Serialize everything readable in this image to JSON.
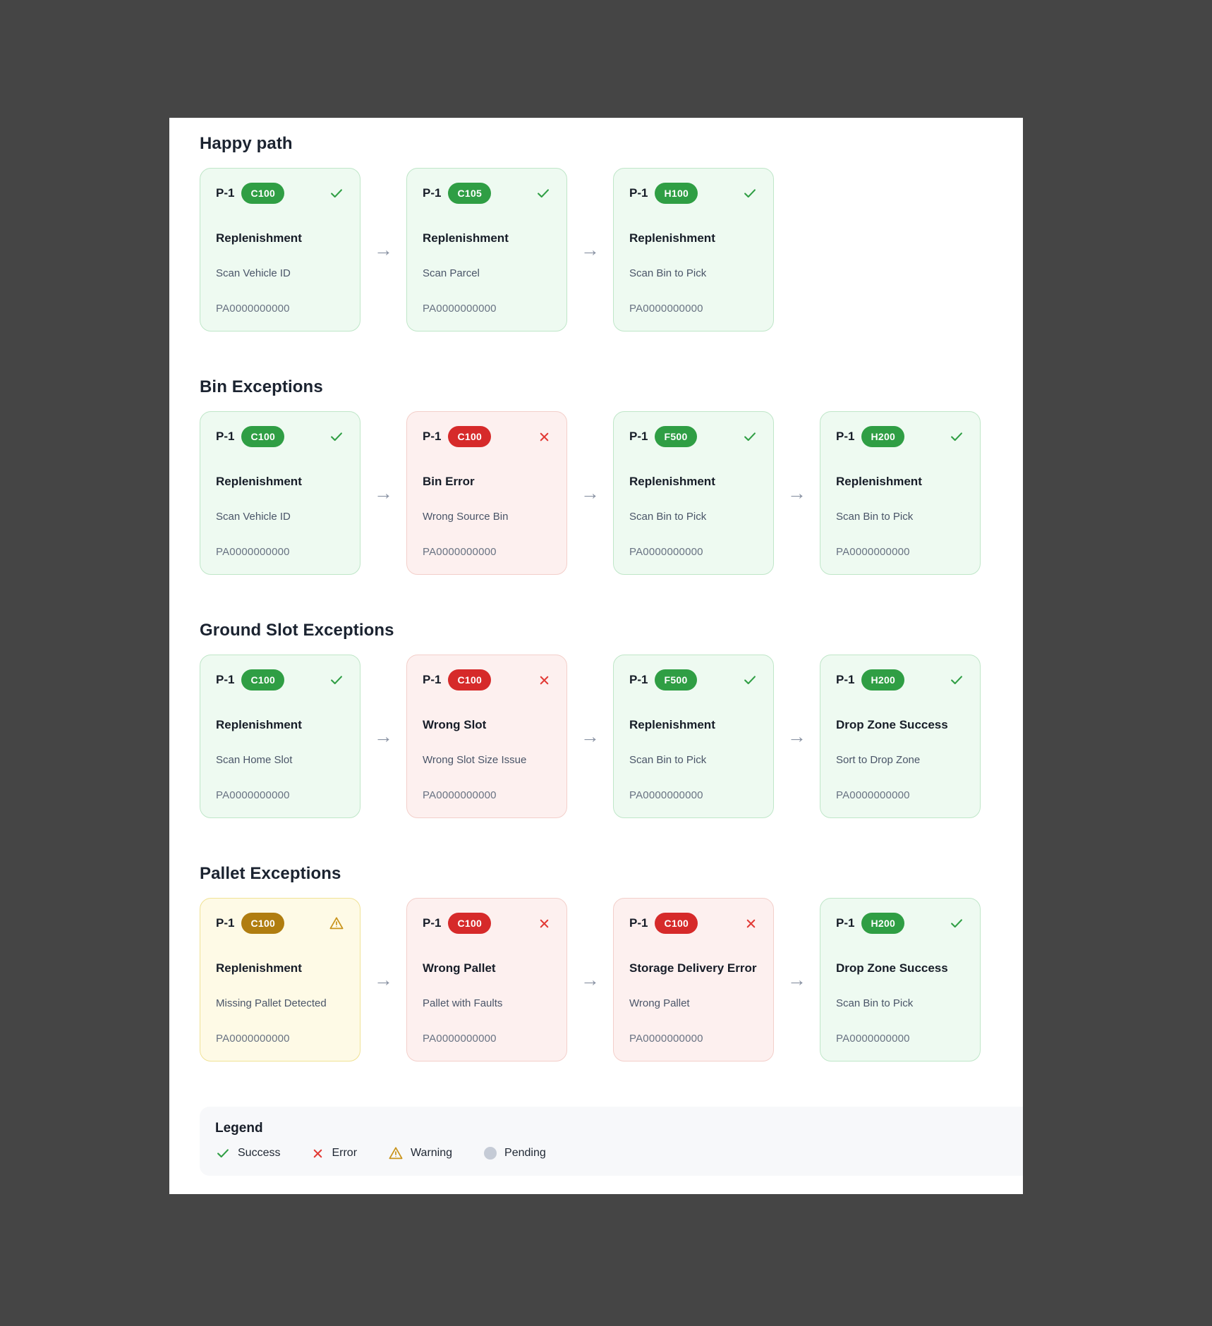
{
  "colors": {
    "page_background": "#454545",
    "panel_background": "#ffffff",
    "badge_green": "#2f9e44",
    "badge_red": "#d62a2a",
    "badge_amber": "#b07d10",
    "success_icon": "#2f9e44",
    "error_icon": "#e23b36",
    "warning_icon": "#c9941c",
    "pending_icon": "#c5cbd6",
    "card_green_bg": "#eefaf1",
    "card_green_border": "#bfe6c8",
    "card_red_bg": "#fdf0ef",
    "card_red_border": "#f3cfca",
    "card_yellow_bg": "#fefae6",
    "card_yellow_border": "#f0e295",
    "arrow": "#8a93a4"
  },
  "arrow_glyph": "→",
  "sections": [
    {
      "title": "Happy path",
      "cards": [
        {
          "label": "P-1",
          "badge": "C100",
          "badge_tone": "green",
          "status": "success",
          "title": "Replenishment",
          "subtitle": "Scan Vehicle ID",
          "id": "PA0000000000",
          "tone": "green"
        },
        {
          "label": "P-1",
          "badge": "C105",
          "badge_tone": "green",
          "status": "success",
          "title": "Replenishment",
          "subtitle": "Scan Parcel",
          "id": "PA0000000000",
          "tone": "green"
        },
        {
          "label": "P-1",
          "badge": "H100",
          "badge_tone": "green",
          "status": "success",
          "title": "Replenishment",
          "subtitle": "Scan Bin to Pick",
          "id": "PA0000000000",
          "tone": "green"
        }
      ]
    },
    {
      "title": "Bin Exceptions",
      "cards": [
        {
          "label": "P-1",
          "badge": "C100",
          "badge_tone": "green",
          "status": "success",
          "title": "Replenishment",
          "subtitle": "Scan Vehicle ID",
          "id": "PA0000000000",
          "tone": "green"
        },
        {
          "label": "P-1",
          "badge": "C100",
          "badge_tone": "red",
          "status": "error",
          "title": "Bin Error",
          "subtitle": "Wrong Source Bin",
          "id": "PA0000000000",
          "tone": "red"
        },
        {
          "label": "P-1",
          "badge": "F500",
          "badge_tone": "green",
          "status": "success",
          "title": "Replenishment",
          "subtitle": "Scan Bin to Pick",
          "id": "PA0000000000",
          "tone": "green"
        },
        {
          "label": "P-1",
          "badge": "H200",
          "badge_tone": "green",
          "status": "success",
          "title": "Replenishment",
          "subtitle": "Scan Bin to Pick",
          "id": "PA0000000000",
          "tone": "green"
        }
      ]
    },
    {
      "title": "Ground Slot Exceptions",
      "cards": [
        {
          "label": "P-1",
          "badge": "C100",
          "badge_tone": "green",
          "status": "success",
          "title": "Replenishment",
          "subtitle": "Scan Home Slot",
          "id": "PA0000000000",
          "tone": "green"
        },
        {
          "label": "P-1",
          "badge": "C100",
          "badge_tone": "red",
          "status": "error",
          "title": "Wrong Slot",
          "subtitle": "Wrong Slot Size Issue",
          "id": "PA0000000000",
          "tone": "red"
        },
        {
          "label": "P-1",
          "badge": "F500",
          "badge_tone": "green",
          "status": "success",
          "title": "Replenishment",
          "subtitle": "Scan Bin to Pick",
          "id": "PA0000000000",
          "tone": "green"
        },
        {
          "label": "P-1",
          "badge": "H200",
          "badge_tone": "green",
          "status": "success",
          "title": "Drop Zone Success",
          "subtitle": "Sort to Drop Zone",
          "id": "PA0000000000",
          "tone": "green"
        }
      ]
    },
    {
      "title": "Pallet Exceptions",
      "cards": [
        {
          "label": "P-1",
          "badge": "C100",
          "badge_tone": "amber",
          "status": "warning",
          "title": "Replenishment",
          "subtitle": "Missing Pallet Detected",
          "id": "PA0000000000",
          "tone": "yellow"
        },
        {
          "label": "P-1",
          "badge": "C100",
          "badge_tone": "red",
          "status": "error",
          "title": "Wrong Pallet",
          "subtitle": "Pallet with Faults",
          "id": "PA0000000000",
          "tone": "red"
        },
        {
          "label": "P-1",
          "badge": "C100",
          "badge_tone": "red",
          "status": "error",
          "title": "Storage Delivery Error",
          "subtitle": "Wrong Pallet",
          "id": "PA0000000000",
          "tone": "red"
        },
        {
          "label": "P-1",
          "badge": "H200",
          "badge_tone": "green",
          "status": "success",
          "title": "Drop Zone Success",
          "subtitle": "Scan Bin to Pick",
          "id": "PA0000000000",
          "tone": "green"
        }
      ]
    }
  ],
  "legend": {
    "title": "Legend",
    "items": [
      {
        "icon": "check-icon",
        "label": "Success"
      },
      {
        "icon": "x-icon",
        "label": "Error"
      },
      {
        "icon": "warning-icon",
        "label": "Warning"
      },
      {
        "icon": "circle-icon",
        "label": "Pending"
      }
    ]
  }
}
